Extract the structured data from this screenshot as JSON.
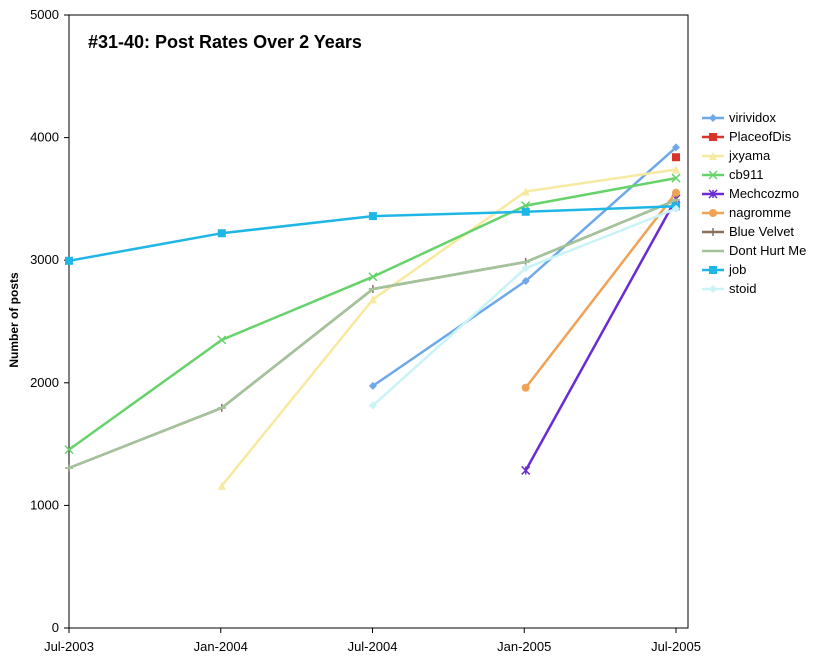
{
  "chart_data": {
    "type": "line",
    "title": "#31-40: Post Rates Over 2 Years",
    "xlabel": "",
    "ylabel": "Number of posts",
    "x_ticks": [
      "Jul-2003",
      "Jan-2004",
      "Jul-2004",
      "Jan-2005",
      "Jul-2005"
    ],
    "x_range": [
      "2003-07-01",
      "2005-07-01"
    ],
    "ylim": [
      0,
      5000
    ],
    "y_ticks": [
      0,
      1000,
      2000,
      3000,
      4000,
      5000
    ],
    "grid": false,
    "legend_position": "right",
    "series": [
      {
        "name": "virividox",
        "color": "#6fa8e8",
        "marker": "diamond",
        "points": [
          [
            "2004-07-01",
            1975
          ],
          [
            "2005-01-01",
            2830
          ],
          [
            "2005-07-01",
            3920
          ]
        ]
      },
      {
        "name": "PlaceofDis",
        "color": "#d9342b",
        "marker": "square",
        "points": [
          [
            "2005-07-01",
            3840
          ]
        ]
      },
      {
        "name": "jxyama",
        "color": "#f7e9a0",
        "marker": "triangle",
        "points": [
          [
            "2004-01-01",
            1160
          ],
          [
            "2004-07-01",
            2680
          ],
          [
            "2005-01-01",
            3560
          ],
          [
            "2005-07-01",
            3740
          ]
        ]
      },
      {
        "name": "cb911",
        "color": "#66d26a",
        "marker": "x",
        "points": [
          [
            "2003-07-01",
            1455
          ],
          [
            "2004-01-01",
            2350
          ],
          [
            "2004-07-01",
            2865
          ],
          [
            "2005-01-01",
            3445
          ],
          [
            "2005-07-01",
            3670
          ]
        ]
      },
      {
        "name": "Mechcozmo",
        "color": "#6a2bd6",
        "marker": "star",
        "points": [
          [
            "2005-01-01",
            1285
          ],
          [
            "2005-07-01",
            3500
          ]
        ]
      },
      {
        "name": "nagromme",
        "color": "#f0a255",
        "marker": "circle",
        "points": [
          [
            "2005-01-01",
            1960
          ],
          [
            "2005-07-01",
            3550
          ]
        ]
      },
      {
        "name": "Blue Velvet",
        "color": "#8a6e5e",
        "marker": "plus",
        "points": [
          [
            "2003-07-01",
            1305
          ],
          [
            "2004-01-01",
            1795
          ],
          [
            "2004-07-01",
            2765
          ],
          [
            "2005-01-01",
            2985
          ],
          [
            "2005-07-01",
            3490
          ]
        ]
      },
      {
        "name": "Dont Hurt Me",
        "color": "#a3c49b",
        "marker": "dash",
        "points": [
          [
            "2003-07-01",
            1305
          ],
          [
            "2004-01-01",
            1795
          ],
          [
            "2004-07-01",
            2765
          ],
          [
            "2005-01-01",
            2985
          ],
          [
            "2005-07-01",
            3490
          ]
        ]
      },
      {
        "name": "job",
        "color": "#1fb6e6",
        "marker": "square",
        "points": [
          [
            "2003-07-01",
            2995
          ],
          [
            "2004-01-01",
            3220
          ],
          [
            "2004-07-01",
            3360
          ],
          [
            "2005-01-01",
            3395
          ],
          [
            "2005-07-01",
            3440
          ]
        ]
      },
      {
        "name": "stoid",
        "color": "#c9f3f7",
        "marker": "diamond",
        "points": [
          [
            "2004-07-01",
            1815
          ],
          [
            "2005-01-01",
            2935
          ],
          [
            "2005-07-01",
            3420
          ]
        ]
      }
    ]
  }
}
